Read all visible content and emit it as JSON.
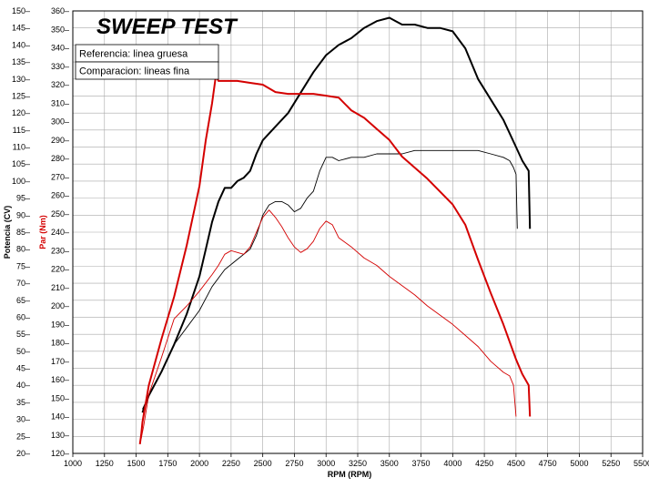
{
  "chart_data": {
    "type": "line",
    "title": "SWEEP TEST",
    "xlabel": "RPM (RPM)",
    "ylabel_left": "Potencia (CV)",
    "ylabel_right": "Par (Nm)",
    "xlim": [
      1000,
      5500
    ],
    "ylim_power": [
      20,
      150
    ],
    "ylim_torque": [
      120,
      360
    ],
    "x_ticks": [
      1000,
      1250,
      1500,
      1750,
      2000,
      2250,
      2500,
      2750,
      3000,
      3250,
      3500,
      3750,
      4000,
      4250,
      4500,
      4750,
      5000,
      5250,
      5500
    ],
    "power_ticks": [
      20,
      25,
      30,
      35,
      40,
      45,
      50,
      55,
      60,
      65,
      70,
      75,
      80,
      85,
      90,
      95,
      100,
      105,
      110,
      115,
      120,
      125,
      130,
      135,
      140,
      145,
      150
    ],
    "torque_ticks": [
      120,
      130,
      140,
      150,
      160,
      170,
      180,
      190,
      200,
      210,
      220,
      230,
      240,
      250,
      260,
      270,
      280,
      290,
      300,
      310,
      320,
      330,
      340,
      350,
      360
    ],
    "grid": true,
    "legend": {
      "position": "top-left",
      "entries": [
        "Referencia: linea gruesa",
        "Comparacion: lineas fina"
      ]
    },
    "series": [
      {
        "color": "#000000",
        "weight": "thick",
        "axis": "power",
        "x": [
          1550,
          1600,
          1700,
          1800,
          1900,
          2000,
          2050,
          2100,
          2150,
          2200,
          2250,
          2300,
          2350,
          2400,
          2450,
          2500,
          2600,
          2700,
          2800,
          2900,
          3000,
          3100,
          3200,
          3300,
          3400,
          3500,
          3550,
          3600,
          3700,
          3800,
          3900,
          4000,
          4100,
          4200,
          4300,
          4400,
          4500,
          4550,
          4600,
          4610
        ],
        "y": [
          32,
          37,
          44,
          52,
          61,
          72,
          80,
          88,
          94,
          98,
          98,
          100,
          101,
          103,
          108,
          112,
          116,
          120,
          126,
          132,
          137,
          140,
          142,
          145,
          147,
          148,
          147,
          146,
          146,
          145,
          145,
          144,
          139,
          130,
          124,
          118,
          110,
          106,
          103,
          86
        ]
      },
      {
        "color": "#000000",
        "weight": "thin",
        "axis": "power",
        "x": [
          1550,
          1600,
          1700,
          1800,
          1900,
          2000,
          2100,
          2200,
          2300,
          2400,
          2450,
          2500,
          2550,
          2600,
          2650,
          2700,
          2750,
          2800,
          2850,
          2900,
          2950,
          3000,
          3050,
          3100,
          3200,
          3300,
          3400,
          3500,
          3600,
          3700,
          3800,
          3900,
          4000,
          4100,
          4200,
          4300,
          4400,
          4450,
          4480,
          4500,
          4510
        ],
        "y": [
          33,
          37,
          44,
          52,
          57,
          62,
          69,
          74,
          77,
          80,
          84,
          90,
          93,
          94,
          94,
          93,
          91,
          92,
          95,
          97,
          103,
          107,
          107,
          106,
          107,
          107,
          108,
          108,
          108,
          109,
          109,
          109,
          109,
          109,
          109,
          108,
          107,
          106,
          104,
          102,
          86
        ]
      },
      {
        "color": "#d40000",
        "weight": "thick",
        "axis": "torque",
        "x": [
          1530,
          1540,
          1550,
          1600,
          1700,
          1800,
          1900,
          2000,
          2050,
          2100,
          2130,
          2150,
          2200,
          2300,
          2400,
          2500,
          2600,
          2700,
          2800,
          2900,
          3000,
          3100,
          3200,
          3300,
          3400,
          3500,
          3600,
          3700,
          3800,
          3900,
          4000,
          4100,
          4200,
          4300,
          4400,
          4500,
          4550,
          4600,
          4610
        ],
        "y": [
          125,
          130,
          137,
          157,
          182,
          205,
          233,
          265,
          290,
          310,
          325,
          322,
          322,
          322,
          321,
          320,
          316,
          315,
          315,
          315,
          314,
          313,
          306,
          302,
          296,
          290,
          281,
          275,
          269,
          262,
          255,
          244,
          225,
          207,
          190,
          171,
          163,
          157,
          140
        ]
      },
      {
        "color": "#d40000",
        "weight": "thin",
        "axis": "torque",
        "x": [
          1540,
          1560,
          1600,
          1700,
          1800,
          1900,
          2000,
          2100,
          2150,
          2200,
          2250,
          2300,
          2350,
          2400,
          2450,
          2500,
          2550,
          2600,
          2650,
          2700,
          2750,
          2800,
          2850,
          2900,
          2950,
          3000,
          3050,
          3100,
          3200,
          3300,
          3400,
          3500,
          3600,
          3700,
          3800,
          3900,
          4000,
          4100,
          4200,
          4300,
          4400,
          4450,
          4480,
          4500
        ],
        "y": [
          128,
          135,
          152,
          172,
          193,
          200,
          208,
          217,
          222,
          228,
          230,
          229,
          228,
          232,
          240,
          248,
          252,
          248,
          243,
          237,
          232,
          229,
          231,
          235,
          242,
          246,
          244,
          237,
          232,
          226,
          222,
          216,
          211,
          206,
          200,
          195,
          190,
          184,
          178,
          170,
          164,
          162,
          157,
          140
        ]
      }
    ]
  }
}
